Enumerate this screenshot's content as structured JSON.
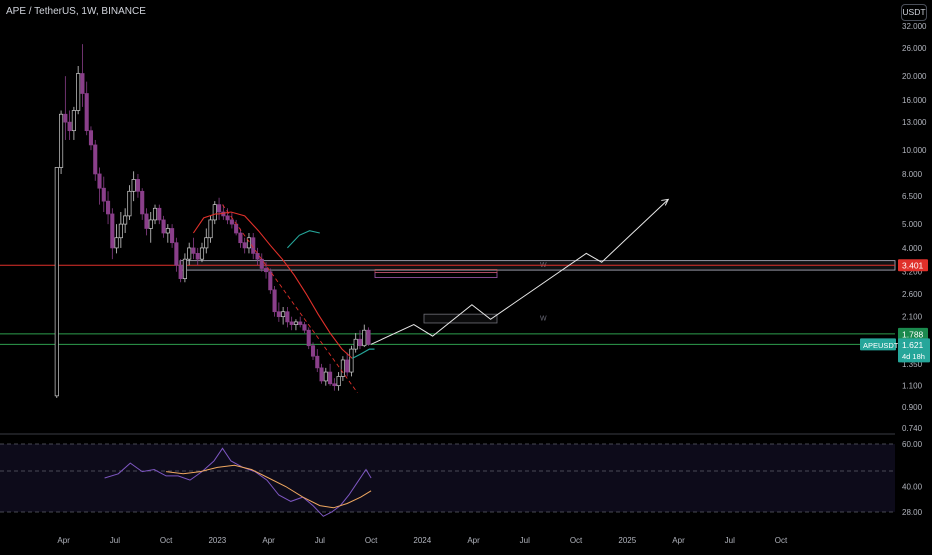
{
  "header": {
    "symbol_line": "APE / TetherUS, 1W, BINANCE",
    "currency_button": "USDT"
  },
  "price_axis": {
    "ticks": [
      "32.000",
      "26.000",
      "20.000",
      "16.000",
      "13.000",
      "10.000",
      "8.000",
      "6.500",
      "5.000",
      "4.000",
      "3.200",
      "2.600",
      "2.100",
      "1.350",
      "1.100",
      "0.900",
      "0.740"
    ],
    "scale": "log"
  },
  "labels": {
    "resistance_price": "3.401",
    "upper_green_price": "1.788",
    "symbol_tag": "APEUSDT",
    "current_price": "1.621",
    "countdown": "4d 18h",
    "zone_tag_upper": "W",
    "zone_tag_lower": "W"
  },
  "colors": {
    "background": "#000000",
    "candle": "#cccccc",
    "candle_bear": "#8a3f8a",
    "ema_red": "#e0302a",
    "ema_green": "#26a69a",
    "resistance_line": "#e0302a",
    "support_lines": "#2e9e4e",
    "rsi_line": "#7e57c2",
    "rsi_ma": "#f0a860",
    "price_badge_green": "#1b8a4e",
    "price_badge_teal": "#26a69a"
  },
  "rsi_axis": {
    "ticks": [
      "60.00",
      "40.00",
      "28.00"
    ]
  },
  "time_axis": {
    "ticks": [
      "Apr",
      "Jul",
      "Oct",
      "2023",
      "Apr",
      "Jul",
      "Oct",
      "2024",
      "Apr",
      "Jul",
      "Oct",
      "2025",
      "Apr",
      "Jul",
      "Oct"
    ]
  },
  "chart_data": {
    "type": "candlestick",
    "title": "APE / TetherUS, 1W, BINANCE",
    "price_scale": "log",
    "ylim": [
      0.74,
      32
    ],
    "x_range": [
      "2022-03",
      "2025-10"
    ],
    "horizontal_levels": [
      {
        "price": 3.401,
        "color": "#e0302a"
      },
      {
        "price": 1.788,
        "color": "#2e9e4e"
      },
      {
        "price": 1.621,
        "color": "#2e9e4e"
      }
    ],
    "last_price": 1.621,
    "projection_path_prices": [
      1.621,
      1.95,
      1.75,
      2.35,
      2.05,
      3.8,
      3.5,
      6.3
    ]
  }
}
